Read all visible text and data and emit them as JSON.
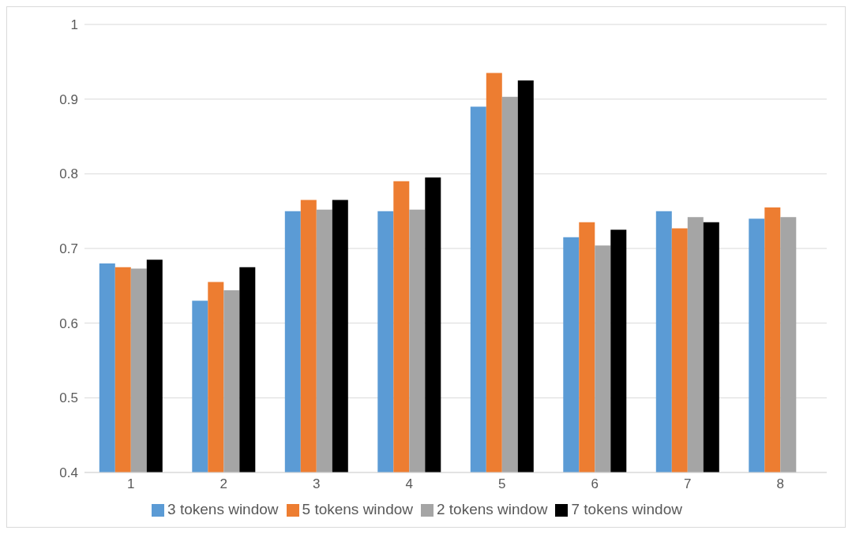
{
  "chart_data": {
    "type": "bar",
    "categories": [
      "1",
      "2",
      "3",
      "4",
      "5",
      "6",
      "7",
      "8"
    ],
    "series": [
      {
        "name": "3 tokens window",
        "color": "#5b9bd5",
        "values": [
          0.68,
          0.63,
          0.75,
          0.75,
          0.89,
          0.715,
          0.75,
          0.74
        ]
      },
      {
        "name": "5 tokens window",
        "color": "#ed7d31",
        "values": [
          0.675,
          0.655,
          0.765,
          0.79,
          0.935,
          0.735,
          0.727,
          0.755
        ]
      },
      {
        "name": "2 tokens window",
        "color": "#a5a5a5",
        "values": [
          0.673,
          0.644,
          0.752,
          0.752,
          0.903,
          0.704,
          0.742,
          0.742
        ]
      },
      {
        "name": "7 tokens window",
        "color": "#000000",
        "values": [
          0.685,
          0.675,
          0.765,
          0.795,
          0.925,
          0.725,
          0.735,
          null
        ]
      }
    ],
    "ylim": [
      0.4,
      1
    ],
    "yticks": [
      0.4,
      0.5,
      0.6,
      0.7,
      0.8,
      0.9,
      1
    ],
    "grid": "y",
    "legend": "bottom"
  }
}
